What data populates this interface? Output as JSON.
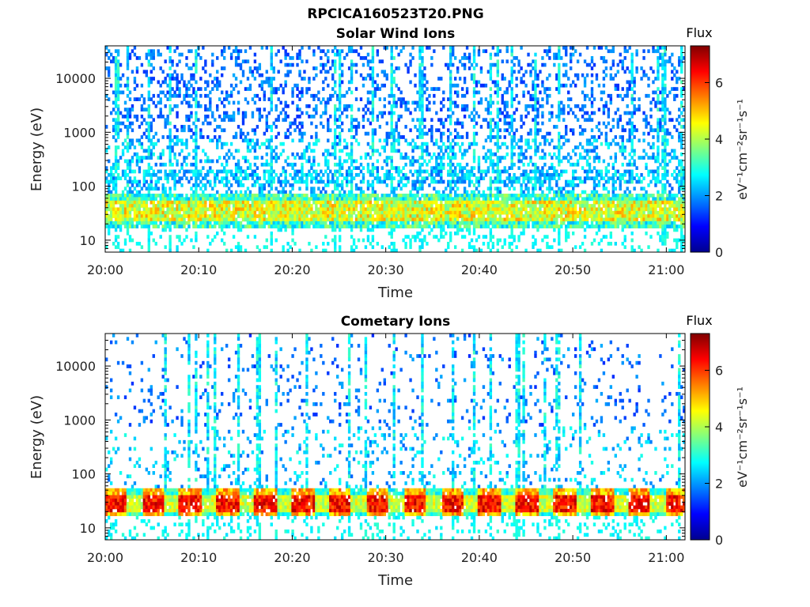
{
  "figure_title": "RPCICA160523T20.PNG",
  "colormap": [
    "#00008f",
    "#0000ff",
    "#0080ff",
    "#00ffff",
    "#80ff80",
    "#ffff00",
    "#ff8000",
    "#ff0000",
    "#800000"
  ],
  "chart_data": [
    {
      "type": "heatmap",
      "title": "Solar Wind Ions",
      "xlabel": "Time",
      "ylabel": "Energy (eV)",
      "x_ticks": [
        "20:00",
        "20:10",
        "20:20",
        "20:30",
        "20:40",
        "20:50",
        "21:00"
      ],
      "y_ticks": [
        "10",
        "100",
        "1000",
        "10000"
      ],
      "y_scale": "log",
      "ylim": [
        6,
        40000
      ],
      "x_range": [
        "20:00",
        "21:02"
      ],
      "colorbar": {
        "title": "Flux",
        "label": "eV⁻¹cm⁻²sr⁻¹s⁻¹",
        "ticks": [
          "0",
          "2",
          "4",
          "6"
        ],
        "range": [
          0,
          7.3
        ]
      },
      "features": {
        "dominant_band_eV": [
          20,
          60
        ],
        "dominant_band_flux": "4-5",
        "background_flux": "1-2",
        "sparse_high_energy_counts": true
      }
    },
    {
      "type": "heatmap",
      "title": "Cometary Ions",
      "xlabel": "Time",
      "ylabel": "Energy (eV)",
      "x_ticks": [
        "20:00",
        "20:10",
        "20:20",
        "20:30",
        "20:40",
        "20:50",
        "21:00"
      ],
      "y_ticks": [
        "10",
        "100",
        "1000",
        "10000"
      ],
      "y_scale": "log",
      "ylim": [
        6,
        40000
      ],
      "x_range": [
        "20:00",
        "21:02"
      ],
      "colorbar": {
        "title": "Flux",
        "label": "eV⁻¹cm⁻²sr⁻¹s⁻¹",
        "ticks": [
          "0",
          "2",
          "4",
          "6"
        ],
        "range": [
          0,
          7.3
        ]
      },
      "features": {
        "dominant_band_eV": [
          18,
          45
        ],
        "dominant_band_flux": "5-7",
        "periodic_intensity_modulation": true,
        "background_flux": "1-2",
        "sparse_high_energy_counts": true
      }
    }
  ]
}
